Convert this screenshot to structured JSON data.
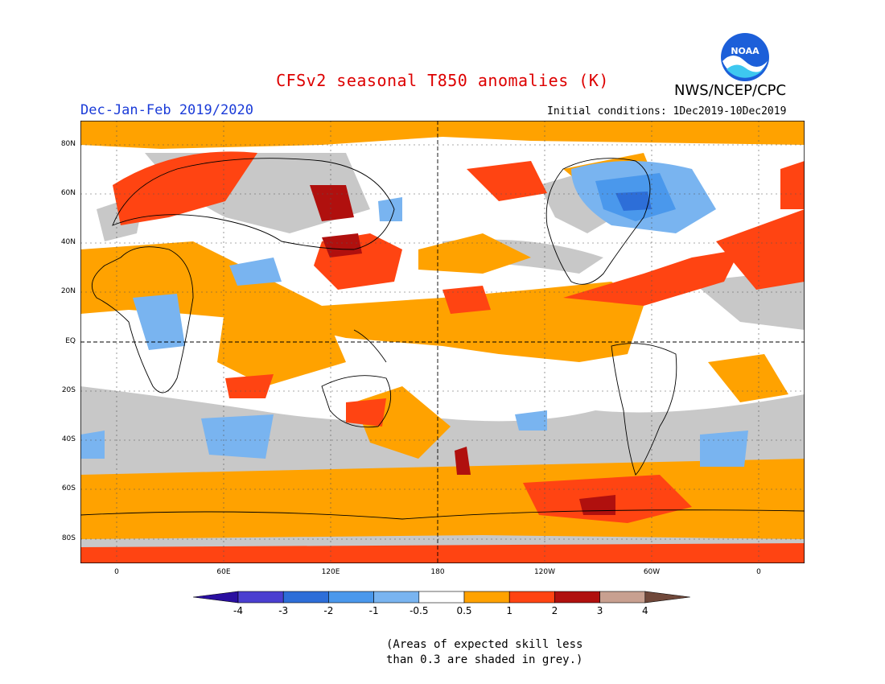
{
  "title": "CFSv2 seasonal T850 anomalies (K)",
  "agency": "NWS/NCEP/CPC",
  "logo_text": "NOAA",
  "season": "Dec-Jan-Feb 2019/2020",
  "initial_conditions": "Initial conditions: 1Dec2019-10Dec2019",
  "lat_labels": [
    "80N",
    "60N",
    "40N",
    "20N",
    "EQ",
    "20S",
    "40S",
    "60S",
    "80S"
  ],
  "lon_labels": [
    "0",
    "60E",
    "120E",
    "180",
    "120W",
    "60W",
    "0"
  ],
  "colorbar": {
    "labels": [
      "-4",
      "-3",
      "-2",
      "-1",
      "-0.5",
      "0.5",
      "1",
      "2",
      "3",
      "4"
    ],
    "colors": [
      "#2a0fa0",
      "#4b3fd0",
      "#2d6ed8",
      "#4a98ec",
      "#79b4f0",
      "#ffffff",
      "#ffa200",
      "#ff4412",
      "#b0100e",
      "#c8a090",
      "#70483a"
    ]
  },
  "note": {
    "line1": "(Areas of expected skill less",
    "line2": "than 0.3 are shaded in grey.)"
  }
}
